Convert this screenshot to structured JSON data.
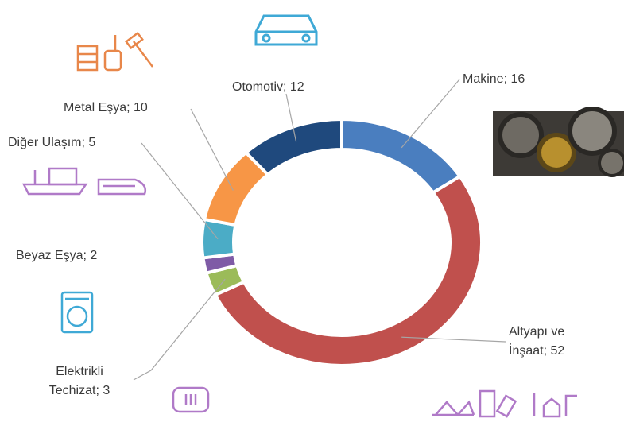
{
  "chart_data": {
    "type": "donut",
    "categories": [
      "Makine",
      "Altyapı ve İnşaat",
      "Elektrikli Techizat",
      "Beyaz Eşya",
      "Diğer Ulaşım",
      "Metal Eşya",
      "Otomotiv"
    ],
    "values": [
      16,
      52,
      3,
      2,
      5,
      10,
      12
    ],
    "colors": [
      "#4a7ebf",
      "#c0504d",
      "#9bbb59",
      "#7f5ba6",
      "#4bacc6",
      "#f79646",
      "#1f497d"
    ],
    "label_separator": "; "
  }
}
